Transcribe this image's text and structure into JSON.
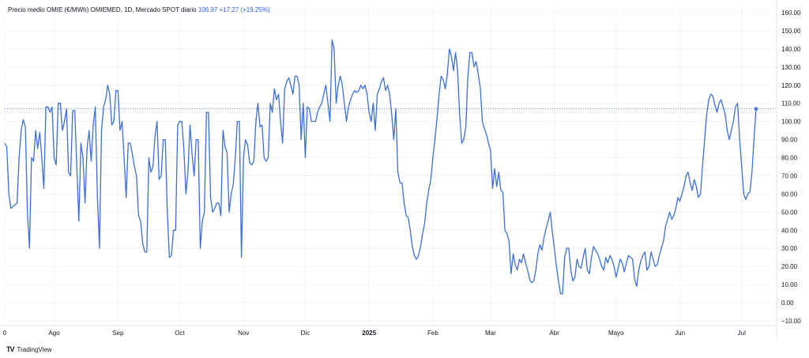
{
  "legend": {
    "title": "Precio medio OMIE (€/MWh) OMIEMED, 1D, Mercado SPOT diario",
    "last": "106.97",
    "change": "+17.27 (+19.25%)"
  },
  "brand": {
    "logo": "TV",
    "name": "TradingView"
  },
  "colors": {
    "line": "#3c6fd6",
    "grid": "#f0f3fa",
    "ref": "#3c6fd6"
  },
  "chart_data": {
    "type": "line",
    "ylim": [
      -10,
      160
    ],
    "yticks": [
      "160.00",
      "150.00",
      "140.00",
      "130.00",
      "120.00",
      "110.00",
      "100.00",
      "90.00",
      "80.00",
      "70.00",
      "60.00",
      "50.00",
      "40.00",
      "30.00",
      "20.00",
      "10.00",
      "0.00",
      "−10.00"
    ],
    "ytick_values": [
      160,
      150,
      140,
      130,
      120,
      110,
      100,
      90,
      80,
      70,
      60,
      50,
      40,
      30,
      20,
      10,
      0,
      -10
    ],
    "xticks": [
      {
        "label": "0",
        "i": 0
      },
      {
        "label": "Ago",
        "i": 24
      },
      {
        "label": "Sep",
        "i": 55
      },
      {
        "label": "Oct",
        "i": 85
      },
      {
        "label": "Nov",
        "i": 116
      },
      {
        "label": "Dic",
        "i": 146
      },
      {
        "label": "2025",
        "i": 177,
        "bold": true
      },
      {
        "label": "Feb",
        "i": 208
      },
      {
        "label": "Mar",
        "i": 236
      },
      {
        "label": "Abr",
        "i": 267
      },
      {
        "label": "Mayo",
        "i": 297
      },
      {
        "label": "Jun",
        "i": 328
      },
      {
        "label": "Jul",
        "i": 358
      }
    ],
    "last_value": 106.97,
    "values": [
      88,
      86,
      60,
      52,
      53,
      54,
      55,
      80,
      95,
      101,
      97,
      50,
      30,
      80,
      78,
      95,
      85,
      94,
      80,
      63,
      108,
      108,
      105,
      108,
      80,
      76,
      110,
      110,
      95,
      100,
      107,
      72,
      70,
      106,
      106,
      75,
      45,
      88,
      80,
      55,
      85,
      95,
      78,
      98,
      108,
      60,
      30,
      95,
      108,
      112,
      120,
      115,
      98,
      100,
      117,
      117,
      95,
      100,
      80,
      58,
      88,
      88,
      82,
      75,
      70,
      48,
      45,
      33,
      28,
      28,
      80,
      72,
      75,
      92,
      100,
      68,
      70,
      90,
      90,
      50,
      25,
      26,
      40,
      40,
      98,
      100,
      100,
      85,
      60,
      72,
      98,
      82,
      70,
      90,
      90,
      30,
      45,
      50,
      105,
      105,
      58,
      50,
      52,
      55,
      55,
      48,
      95,
      86,
      83,
      50,
      60,
      65,
      80,
      100,
      100,
      25,
      80,
      90,
      87,
      77,
      76,
      78,
      100,
      110,
      97,
      98,
      80,
      78,
      80,
      110,
      105,
      118,
      112,
      115,
      100,
      88,
      118,
      122,
      124,
      120,
      115,
      125,
      125,
      120,
      90,
      110,
      80,
      108,
      107,
      100,
      100,
      100,
      105,
      108,
      110,
      115,
      120,
      110,
      100,
      145,
      140,
      110,
      120,
      125,
      120,
      110,
      100,
      108,
      112,
      115,
      117,
      116,
      117,
      120,
      118,
      120,
      115,
      105,
      100,
      110,
      95,
      115,
      118,
      122,
      124,
      117,
      120,
      115,
      104,
      90,
      107,
      72,
      66,
      66,
      55,
      48,
      47,
      40,
      31,
      26,
      24,
      26,
      31,
      38,
      44,
      55,
      62,
      68,
      80,
      90,
      102,
      115,
      125,
      123,
      118,
      126,
      140,
      136,
      128,
      138,
      128,
      104,
      88,
      90,
      97,
      125,
      138,
      138,
      130,
      133,
      126,
      119,
      100,
      96,
      93,
      88,
      84,
      63,
      74,
      64,
      72,
      62,
      61,
      40,
      38,
      34,
      16,
      27,
      21,
      18,
      24,
      22,
      27,
      22,
      18,
      13,
      11,
      12,
      18,
      27,
      32,
      29,
      36,
      41,
      45,
      50,
      39,
      30,
      20,
      12,
      5,
      5,
      25,
      30,
      30,
      18,
      12,
      14,
      24,
      20,
      19,
      25,
      30,
      18,
      16,
      25,
      31,
      29,
      27,
      24,
      20,
      18,
      25,
      22,
      26,
      24,
      20,
      14,
      19,
      24,
      22,
      17,
      22,
      26,
      25,
      24,
      13,
      9,
      18,
      23,
      26,
      28,
      18,
      20,
      28,
      24,
      20,
      21,
      26,
      30,
      34,
      42,
      46,
      50,
      46,
      48,
      52,
      58,
      56,
      60,
      64,
      70,
      72,
      66,
      62,
      68,
      64,
      58,
      60,
      76,
      90,
      104,
      112,
      115,
      114,
      109,
      105,
      110,
      112,
      108,
      104,
      95,
      90,
      95,
      100,
      108,
      110,
      90,
      75,
      60,
      57,
      60,
      61,
      72,
      90,
      106.97
    ]
  }
}
